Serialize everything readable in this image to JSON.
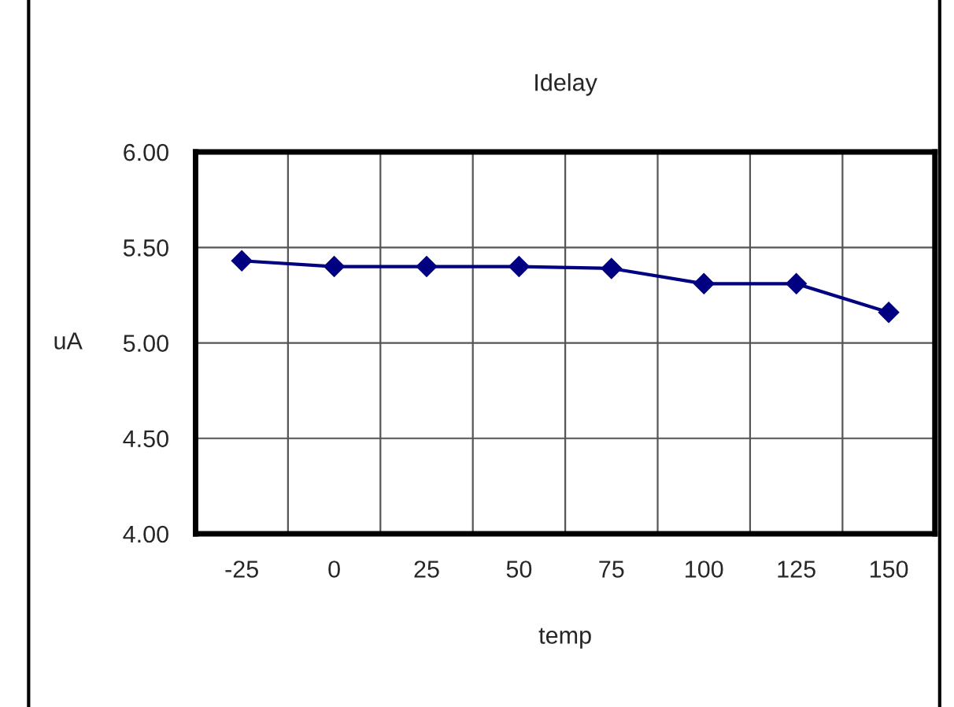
{
  "chart_data": {
    "type": "line",
    "title": "Idelay",
    "xlabel": "temp",
    "ylabel": "uA",
    "categories": [
      "-25",
      "0",
      "25",
      "50",
      "75",
      "100",
      "125",
      "150"
    ],
    "series": [
      {
        "color": "#000080",
        "values": [
          5.43,
          5.4,
          5.4,
          5.4,
          5.39,
          5.31,
          5.31,
          5.16
        ]
      }
    ],
    "ylim": [
      4.0,
      6.0
    ],
    "yticks": [
      {
        "value": 4.0,
        "label": "4.00"
      },
      {
        "value": 4.5,
        "label": "4.50"
      },
      {
        "value": 5.0,
        "label": "5.00"
      },
      {
        "value": 5.5,
        "label": "5.50"
      },
      {
        "value": 6.0,
        "label": "6.00"
      }
    ],
    "grid": true,
    "marker": "diamond",
    "line_style": "solid",
    "legend": false
  }
}
